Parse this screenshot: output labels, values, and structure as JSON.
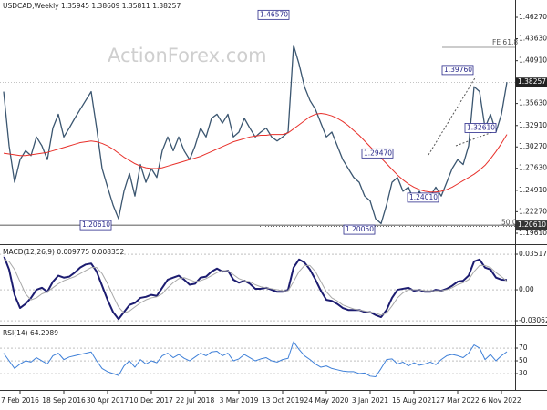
{
  "chart_data": [
    {
      "type": "line",
      "title": "USDCAD,Weekly  1.35945 1.38609 1.35811 1.38257",
      "watermark": "ActionForex.com",
      "ylim": [
        1.1826,
        1.4841
      ],
      "grid": false,
      "yticks": [
        {
          "value": 1.4627,
          "label": "1.46270"
        },
        {
          "value": 1.4363,
          "label": "1.43630"
        },
        {
          "value": 1.4091,
          "label": "1.40910"
        },
        {
          "value": 1.3563,
          "label": "1.35630"
        },
        {
          "value": 1.3291,
          "label": "1.32910"
        },
        {
          "value": 1.3027,
          "label": "1.30270"
        },
        {
          "value": 1.2763,
          "label": "1.27630"
        },
        {
          "value": 1.2491,
          "label": "1.24910"
        },
        {
          "value": 1.2227,
          "label": "1.22270"
        },
        {
          "value": 1.1961,
          "label": "1.19610"
        }
      ],
      "series": [
        {
          "color": "#3b5670",
          "values": [
            1.371,
            1.304,
            1.259,
            1.287,
            1.298,
            1.292,
            1.315,
            1.304,
            1.287,
            1.326,
            1.343,
            1.315,
            1.326,
            1.338,
            1.349,
            1.36,
            1.371,
            1.326,
            1.276,
            1.253,
            1.231,
            1.214,
            1.248,
            1.27,
            1.242,
            1.281,
            1.259,
            1.276,
            1.265,
            1.298,
            1.315,
            1.298,
            1.315,
            1.298,
            1.287,
            1.304,
            1.326,
            1.315,
            1.338,
            1.343,
            1.332,
            1.343,
            1.315,
            1.321,
            1.338,
            1.326,
            1.315,
            1.321,
            1.326,
            1.315,
            1.31,
            1.315,
            1.321,
            1.428,
            1.405,
            1.377,
            1.36,
            1.349,
            1.332,
            1.315,
            1.321,
            1.304,
            1.287,
            1.276,
            1.265,
            1.259,
            1.242,
            1.236,
            1.214,
            1.208,
            1.231,
            1.259,
            1.265,
            1.248,
            1.253,
            1.236,
            1.248,
            1.236,
            1.242,
            1.253,
            1.242,
            1.259,
            1.276,
            1.287,
            1.281,
            1.304,
            1.377,
            1.371,
            1.326,
            1.343,
            1.321,
            1.343,
            1.38257
          ]
        },
        {
          "color": "#e8302a",
          "values": [
            1.295,
            1.294,
            1.293,
            1.292,
            1.292,
            1.293,
            1.294,
            1.295,
            1.296,
            1.298,
            1.3,
            1.302,
            1.304,
            1.306,
            1.308,
            1.309,
            1.31,
            1.309,
            1.307,
            1.304,
            1.3,
            1.295,
            1.29,
            1.286,
            1.282,
            1.279,
            1.277,
            1.276,
            1.276,
            1.277,
            1.279,
            1.281,
            1.283,
            1.285,
            1.287,
            1.289,
            1.291,
            1.294,
            1.297,
            1.3,
            1.303,
            1.306,
            1.309,
            1.311,
            1.313,
            1.315,
            1.316,
            1.317,
            1.317,
            1.318,
            1.318,
            1.318,
            1.32,
            1.325,
            1.33,
            1.335,
            1.34,
            1.343,
            1.344,
            1.343,
            1.341,
            1.338,
            1.334,
            1.329,
            1.323,
            1.317,
            1.31,
            1.303,
            1.296,
            1.289,
            1.282,
            1.275,
            1.268,
            1.262,
            1.257,
            1.253,
            1.25,
            1.248,
            1.247,
            1.247,
            1.248,
            1.25,
            1.253,
            1.257,
            1.261,
            1.265,
            1.269,
            1.274,
            1.28,
            1.288,
            1.297,
            1.307,
            1.318
          ]
        }
      ],
      "levels": [
        {
          "value": 1.4657,
          "label": "1.46570"
        },
        {
          "value": 1.4256,
          "label": "FE 61.8"
        },
        {
          "value": 1.2061,
          "label": "1.20610"
        },
        {
          "value": 1.2046,
          "label": "50.0"
        }
      ],
      "annotations": [
        {
          "value": 1.3976,
          "label": "1.39760"
        },
        {
          "value": 1.3261,
          "label": "1.32610"
        },
        {
          "value": 1.2947,
          "label": "1.29470"
        },
        {
          "value": 1.2401,
          "label": "1.24010"
        },
        {
          "value": 1.2005,
          "label": "1.20050"
        }
      ]
    },
    {
      "type": "line",
      "title": "MACD(12,26,9) 0.009775 0.008352",
      "ylim": [
        -0.0351,
        0.0433
      ],
      "grid": true,
      "yticks": [
        0.035172,
        {
          "value": 0,
          "label": "0.00"
        },
        -0.030626
      ],
      "series": [
        {
          "color": "#1c1c70",
          "values": [
            0.034,
            0.02,
            -0.005,
            -0.018,
            -0.014,
            -0.008,
            0.0,
            0.002,
            -0.002,
            0.008,
            0.014,
            0.012,
            0.013,
            0.017,
            0.022,
            0.025,
            0.026,
            0.018,
            0.004,
            -0.01,
            -0.022,
            -0.029,
            -0.022,
            -0.015,
            -0.013,
            -0.008,
            -0.007,
            -0.005,
            -0.006,
            0.002,
            0.01,
            0.012,
            0.014,
            0.01,
            0.005,
            0.006,
            0.012,
            0.013,
            0.018,
            0.021,
            0.018,
            0.019,
            0.01,
            0.007,
            0.009,
            0.006,
            0.001,
            0.001,
            0.002,
            0.0,
            -0.002,
            -0.002,
            0.0,
            0.022,
            0.03,
            0.027,
            0.02,
            0.01,
            -0.001,
            -0.01,
            -0.011,
            -0.014,
            -0.018,
            -0.02,
            -0.02,
            -0.02,
            -0.022,
            -0.022,
            -0.025,
            -0.027,
            -0.02,
            -0.008,
            0.0,
            0.001,
            0.002,
            -0.001,
            0.0,
            -0.002,
            -0.002,
            0.0,
            -0.001,
            0.001,
            0.004,
            0.008,
            0.009,
            0.014,
            0.028,
            0.03,
            0.022,
            0.02,
            0.012,
            0.01,
            0.009775
          ]
        },
        {
          "color": "#a8a8a8",
          "values": [
            0.03,
            0.028,
            0.02,
            0.008,
            -0.004,
            -0.01,
            -0.008,
            -0.004,
            -0.002,
            0.002,
            0.006,
            0.009,
            0.011,
            0.013,
            0.016,
            0.019,
            0.022,
            0.022,
            0.016,
            0.006,
            -0.006,
            -0.017,
            -0.023,
            -0.021,
            -0.017,
            -0.013,
            -0.01,
            -0.008,
            -0.007,
            -0.004,
            0.002,
            0.007,
            0.011,
            0.012,
            0.01,
            0.008,
            0.009,
            0.011,
            0.014,
            0.017,
            0.019,
            0.019,
            0.015,
            0.011,
            0.009,
            0.008,
            0.005,
            0.003,
            0.002,
            0.001,
            0.0,
            -0.001,
            -0.001,
            0.008,
            0.018,
            0.024,
            0.024,
            0.018,
            0.008,
            -0.002,
            -0.008,
            -0.011,
            -0.015,
            -0.017,
            -0.019,
            -0.02,
            -0.021,
            -0.022,
            -0.023,
            -0.025,
            -0.023,
            -0.016,
            -0.008,
            -0.003,
            0.0,
            0.0,
            0.0,
            -0.001,
            -0.001,
            -0.001,
            -0.001,
            0.0,
            0.002,
            0.005,
            0.007,
            0.01,
            0.018,
            0.024,
            0.024,
            0.022,
            0.017,
            0.013,
            0.008352
          ]
        }
      ]
    },
    {
      "type": "line",
      "title": "RSI(14) 64.2989",
      "ylim": [
        4.3,
        102.9
      ],
      "grid": true,
      "yticks": [
        70,
        50,
        30
      ],
      "categories": [
        null,
        null,
        null,
        "7 Feb 2016",
        null,
        null,
        null,
        null,
        null,
        null,
        null,
        "18 Sep 2016",
        null,
        null,
        null,
        null,
        null,
        null,
        null,
        "30 Apr 2017",
        null,
        null,
        null,
        null,
        null,
        null,
        null,
        "10 Dec 2017",
        null,
        null,
        null,
        null,
        null,
        null,
        null,
        "22 Jul 2018",
        null,
        null,
        null,
        null,
        null,
        null,
        null,
        "3 Mar 2019",
        null,
        null,
        null,
        null,
        null,
        null,
        null,
        "13 Oct 2019",
        null,
        null,
        null,
        null,
        null,
        null,
        null,
        "24 May 2020",
        null,
        null,
        null,
        null,
        null,
        null,
        null,
        "3 Jan 2021",
        null,
        null,
        null,
        null,
        null,
        null,
        null,
        "15 Aug 2021",
        null,
        null,
        null,
        null,
        null,
        null,
        null,
        "27 Mar 2022",
        null,
        null,
        null,
        null,
        null,
        null,
        null,
        "6 Nov 2022",
        null
      ],
      "series": [
        {
          "color": "#3f80d8",
          "values": [
            62,
            50,
            38,
            45,
            50,
            48,
            55,
            50,
            45,
            58,
            62,
            52,
            56,
            58,
            60,
            62,
            64,
            50,
            38,
            33,
            30,
            27,
            42,
            50,
            40,
            52,
            45,
            50,
            47,
            58,
            62,
            55,
            60,
            54,
            50,
            56,
            62,
            58,
            64,
            65,
            58,
            62,
            50,
            53,
            60,
            55,
            50,
            53,
            55,
            50,
            48,
            52,
            54,
            80,
            68,
            58,
            52,
            45,
            40,
            42,
            38,
            36,
            34,
            33,
            33,
            30,
            31,
            26,
            25,
            38,
            52,
            53,
            45,
            48,
            42,
            47,
            43,
            45,
            48,
            44,
            52,
            58,
            60,
            58,
            55,
            62,
            75,
            70,
            52,
            60,
            50,
            58,
            64.2989
          ]
        }
      ]
    }
  ]
}
